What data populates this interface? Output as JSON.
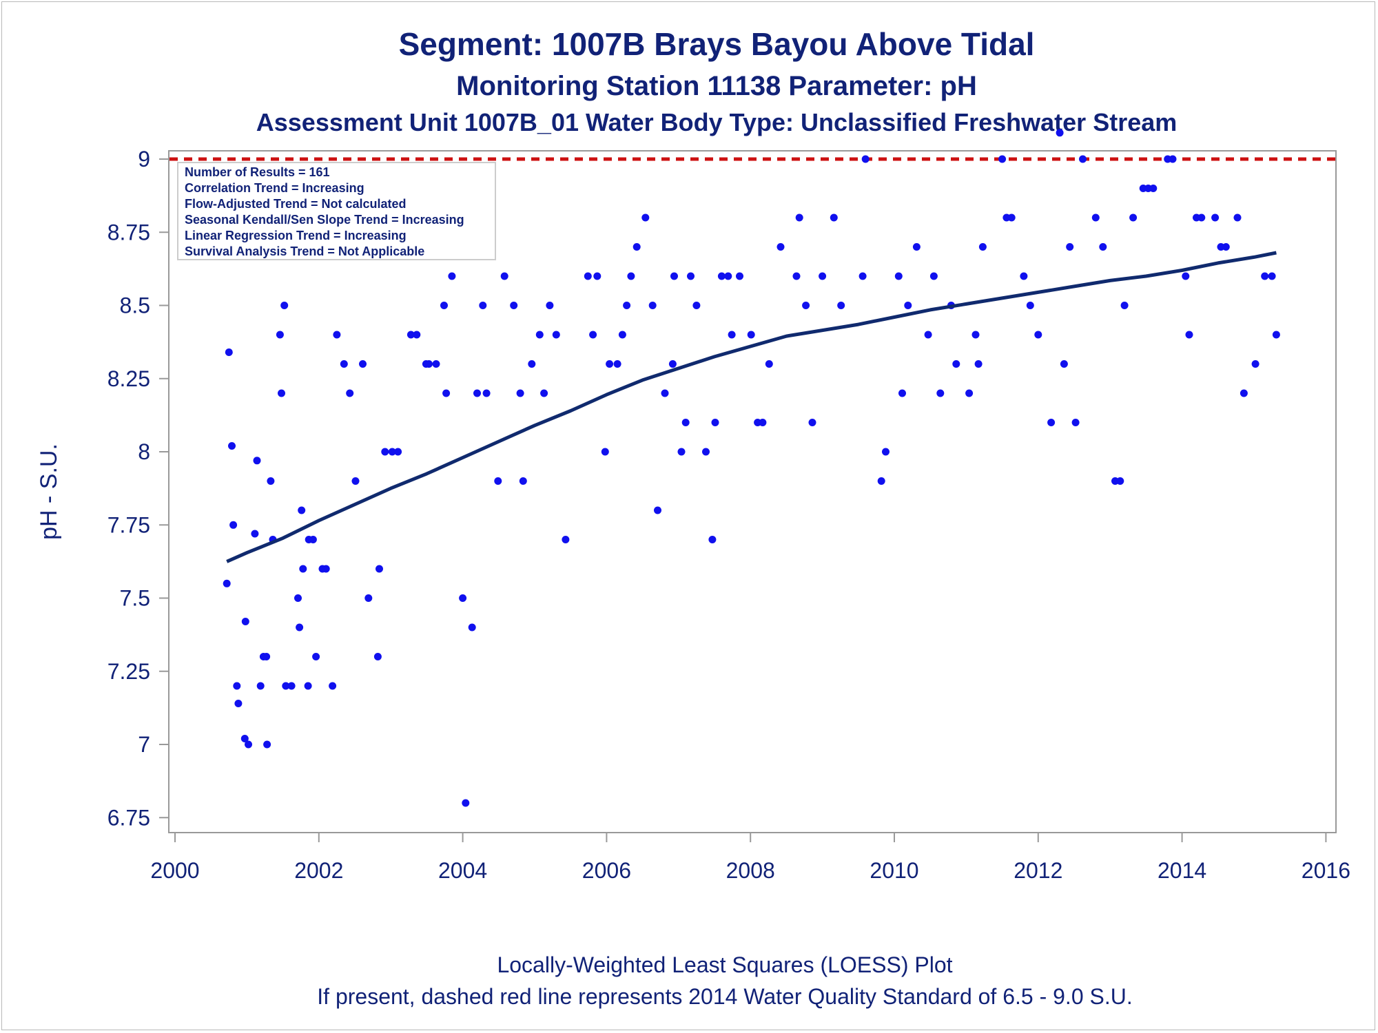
{
  "titles": {
    "line1": "Segment: 1007B  Brays Bayou Above Tidal",
    "line2": "Monitoring Station 11138 Parameter: pH",
    "line3": "Assessment Unit 1007B_01   Water Body Type: Unclassified Freshwater Stream"
  },
  "footnotes": {
    "line1": "Locally-Weighted Least Squares (LOESS) Plot",
    "line2": "If present, dashed red line represents 2014 Water Quality Standard of 6.5 - 9.0 S.U."
  },
  "inset_lines": [
    "Number of Results = 161",
    "Correlation Trend = Increasing",
    "Flow-Adjusted Trend = Not calculated",
    "Seasonal Kendall/Sen Slope Trend = Increasing",
    "Linear Regression Trend = Increasing",
    "Survival Analysis Trend = Not Applicable"
  ],
  "colors": {
    "text": "#112277",
    "points": "#1010ee",
    "loess": "#102a6e",
    "standard_line": "#cc1111",
    "axis": "#999999"
  },
  "chart_data": {
    "type": "scatter",
    "ylabel": "pH - S.U.",
    "xlim": [
      2000,
      2016
    ],
    "ylim": [
      6.75,
      9.1
    ],
    "x_ticks": [
      2000,
      2002,
      2004,
      2006,
      2008,
      2010,
      2012,
      2014,
      2016
    ],
    "y_ticks": [
      6.75,
      7,
      7.25,
      7.5,
      7.75,
      8,
      8.25,
      8.5,
      8.75,
      9
    ],
    "y_tick_labels": [
      "6.75",
      "7",
      "7.25",
      "7.5",
      "7.75",
      "8",
      "8.25",
      "8.5",
      "8.75",
      "9"
    ],
    "standard_line": {
      "value": 9.0,
      "style": "dashed"
    },
    "grid": false,
    "series": [
      {
        "type": "scatter",
        "points": [
          [
            2000.72,
            7.55
          ],
          [
            2000.75,
            8.34
          ],
          [
            2000.79,
            8.02
          ],
          [
            2000.81,
            7.75
          ],
          [
            2000.86,
            7.2
          ],
          [
            2000.88,
            7.14
          ],
          [
            2000.97,
            7.02
          ],
          [
            2000.98,
            7.42
          ],
          [
            2001.02,
            7.0
          ],
          [
            2001.11,
            7.72
          ],
          [
            2001.14,
            7.97
          ],
          [
            2001.19,
            7.2
          ],
          [
            2001.23,
            7.3
          ],
          [
            2001.27,
            7.3
          ],
          [
            2001.28,
            7.0
          ],
          [
            2001.33,
            7.9
          ],
          [
            2001.36,
            7.7
          ],
          [
            2001.46,
            8.4
          ],
          [
            2001.48,
            8.2
          ],
          [
            2001.52,
            8.5
          ],
          [
            2001.54,
            7.2
          ],
          [
            2001.62,
            7.2
          ],
          [
            2001.71,
            7.5
          ],
          [
            2001.73,
            7.4
          ],
          [
            2001.76,
            7.8
          ],
          [
            2001.78,
            7.6
          ],
          [
            2001.85,
            7.2
          ],
          [
            2001.86,
            7.7
          ],
          [
            2001.92,
            7.7
          ],
          [
            2001.96,
            7.3
          ],
          [
            2002.05,
            7.6
          ],
          [
            2002.1,
            7.6
          ],
          [
            2002.19,
            7.2
          ],
          [
            2002.25,
            8.4
          ],
          [
            2002.35,
            8.3
          ],
          [
            2002.43,
            8.2
          ],
          [
            2002.51,
            7.9
          ],
          [
            2002.61,
            8.3
          ],
          [
            2002.69,
            7.5
          ],
          [
            2002.82,
            7.3
          ],
          [
            2002.84,
            7.6
          ],
          [
            2002.92,
            8.0
          ],
          [
            2003.02,
            8.0
          ],
          [
            2003.1,
            8.0
          ],
          [
            2003.28,
            8.4
          ],
          [
            2003.36,
            8.4
          ],
          [
            2003.49,
            8.3
          ],
          [
            2003.53,
            8.3
          ],
          [
            2003.63,
            8.3
          ],
          [
            2003.74,
            8.5
          ],
          [
            2003.77,
            8.2
          ],
          [
            2003.85,
            8.6
          ],
          [
            2004.0,
            7.5
          ],
          [
            2004.04,
            6.8
          ],
          [
            2004.13,
            7.4
          ],
          [
            2004.2,
            8.2
          ],
          [
            2004.28,
            8.5
          ],
          [
            2004.33,
            8.2
          ],
          [
            2004.49,
            7.9
          ],
          [
            2004.58,
            8.6
          ],
          [
            2004.71,
            8.5
          ],
          [
            2004.8,
            8.2
          ],
          [
            2004.84,
            7.9
          ],
          [
            2004.96,
            8.3
          ],
          [
            2005.07,
            8.4
          ],
          [
            2005.13,
            8.2
          ],
          [
            2005.21,
            8.5
          ],
          [
            2005.3,
            8.4
          ],
          [
            2005.43,
            7.7
          ],
          [
            2005.74,
            8.6
          ],
          [
            2005.81,
            8.4
          ],
          [
            2005.87,
            8.6
          ],
          [
            2005.98,
            8.0
          ],
          [
            2006.04,
            8.3
          ],
          [
            2006.15,
            8.3
          ],
          [
            2006.22,
            8.4
          ],
          [
            2006.28,
            8.5
          ],
          [
            2006.34,
            8.6
          ],
          [
            2006.42,
            8.7
          ],
          [
            2006.54,
            8.8
          ],
          [
            2006.64,
            8.5
          ],
          [
            2006.71,
            7.8
          ],
          [
            2006.81,
            8.2
          ],
          [
            2006.92,
            8.3
          ],
          [
            2006.94,
            8.6
          ],
          [
            2007.04,
            8.0
          ],
          [
            2007.1,
            8.1
          ],
          [
            2007.17,
            8.6
          ],
          [
            2007.25,
            8.5
          ],
          [
            2007.38,
            8.0
          ],
          [
            2007.47,
            7.7
          ],
          [
            2007.51,
            8.1
          ],
          [
            2007.6,
            8.6
          ],
          [
            2007.69,
            8.6
          ],
          [
            2007.74,
            8.4
          ],
          [
            2007.85,
            8.6
          ],
          [
            2008.01,
            8.4
          ],
          [
            2008.1,
            8.1
          ],
          [
            2008.17,
            8.1
          ],
          [
            2008.26,
            8.3
          ],
          [
            2008.42,
            8.7
          ],
          [
            2008.64,
            8.6
          ],
          [
            2008.68,
            8.8
          ],
          [
            2008.77,
            8.5
          ],
          [
            2008.86,
            8.1
          ],
          [
            2009.0,
            8.6
          ],
          [
            2009.16,
            8.8
          ],
          [
            2009.26,
            8.5
          ],
          [
            2009.56,
            8.6
          ],
          [
            2009.6,
            9.0
          ],
          [
            2009.82,
            7.9
          ],
          [
            2009.88,
            8.0
          ],
          [
            2010.06,
            8.6
          ],
          [
            2010.11,
            8.2
          ],
          [
            2010.19,
            8.5
          ],
          [
            2010.31,
            8.7
          ],
          [
            2010.47,
            8.4
          ],
          [
            2010.55,
            8.6
          ],
          [
            2010.64,
            8.2
          ],
          [
            2010.79,
            8.5
          ],
          [
            2010.86,
            8.3
          ],
          [
            2011.04,
            8.2
          ],
          [
            2011.13,
            8.4
          ],
          [
            2011.17,
            8.3
          ],
          [
            2011.23,
            8.7
          ],
          [
            2011.5,
            9.0
          ],
          [
            2011.56,
            8.8
          ],
          [
            2011.63,
            8.8
          ],
          [
            2011.8,
            8.6
          ],
          [
            2011.89,
            8.5
          ],
          [
            2012.0,
            8.4
          ],
          [
            2012.18,
            8.1
          ],
          [
            2012.3,
            9.09
          ],
          [
            2012.36,
            8.3
          ],
          [
            2012.44,
            8.7
          ],
          [
            2012.52,
            8.1
          ],
          [
            2012.62,
            9.0
          ],
          [
            2012.8,
            8.8
          ],
          [
            2012.9,
            8.7
          ],
          [
            2013.07,
            7.9
          ],
          [
            2013.14,
            7.9
          ],
          [
            2013.2,
            8.5
          ],
          [
            2013.32,
            8.8
          ],
          [
            2013.46,
            8.9
          ],
          [
            2013.53,
            8.9
          ],
          [
            2013.6,
            8.9
          ],
          [
            2013.8,
            9.0
          ],
          [
            2013.87,
            9.0
          ],
          [
            2014.05,
            8.6
          ],
          [
            2014.1,
            8.4
          ],
          [
            2014.2,
            8.8
          ],
          [
            2014.27,
            8.8
          ],
          [
            2014.46,
            8.8
          ],
          [
            2014.54,
            8.7
          ],
          [
            2014.61,
            8.7
          ],
          [
            2014.77,
            8.8
          ],
          [
            2014.86,
            8.2
          ],
          [
            2015.02,
            8.3
          ],
          [
            2015.15,
            8.6
          ],
          [
            2015.25,
            8.6
          ],
          [
            2015.31,
            8.4
          ]
        ]
      },
      {
        "type": "line",
        "points": [
          [
            2000.72,
            7.625
          ],
          [
            2001.0,
            7.655
          ],
          [
            2001.5,
            7.705
          ],
          [
            2002.0,
            7.765
          ],
          [
            2002.5,
            7.82
          ],
          [
            2003.0,
            7.875
          ],
          [
            2003.5,
            7.925
          ],
          [
            2004.0,
            7.98
          ],
          [
            2004.5,
            8.035
          ],
          [
            2005.0,
            8.09
          ],
          [
            2005.5,
            8.14
          ],
          [
            2006.0,
            8.195
          ],
          [
            2006.5,
            8.245
          ],
          [
            2007.0,
            8.285
          ],
          [
            2007.5,
            8.325
          ],
          [
            2008.0,
            8.36
          ],
          [
            2008.5,
            8.395
          ],
          [
            2009.0,
            8.415
          ],
          [
            2009.5,
            8.435
          ],
          [
            2010.0,
            8.46
          ],
          [
            2010.5,
            8.485
          ],
          [
            2011.0,
            8.505
          ],
          [
            2011.5,
            8.525
          ],
          [
            2012.0,
            8.545
          ],
          [
            2012.5,
            8.565
          ],
          [
            2013.0,
            8.585
          ],
          [
            2013.5,
            8.6
          ],
          [
            2014.0,
            8.62
          ],
          [
            2014.5,
            8.645
          ],
          [
            2015.0,
            8.665
          ],
          [
            2015.31,
            8.68
          ]
        ]
      }
    ]
  }
}
